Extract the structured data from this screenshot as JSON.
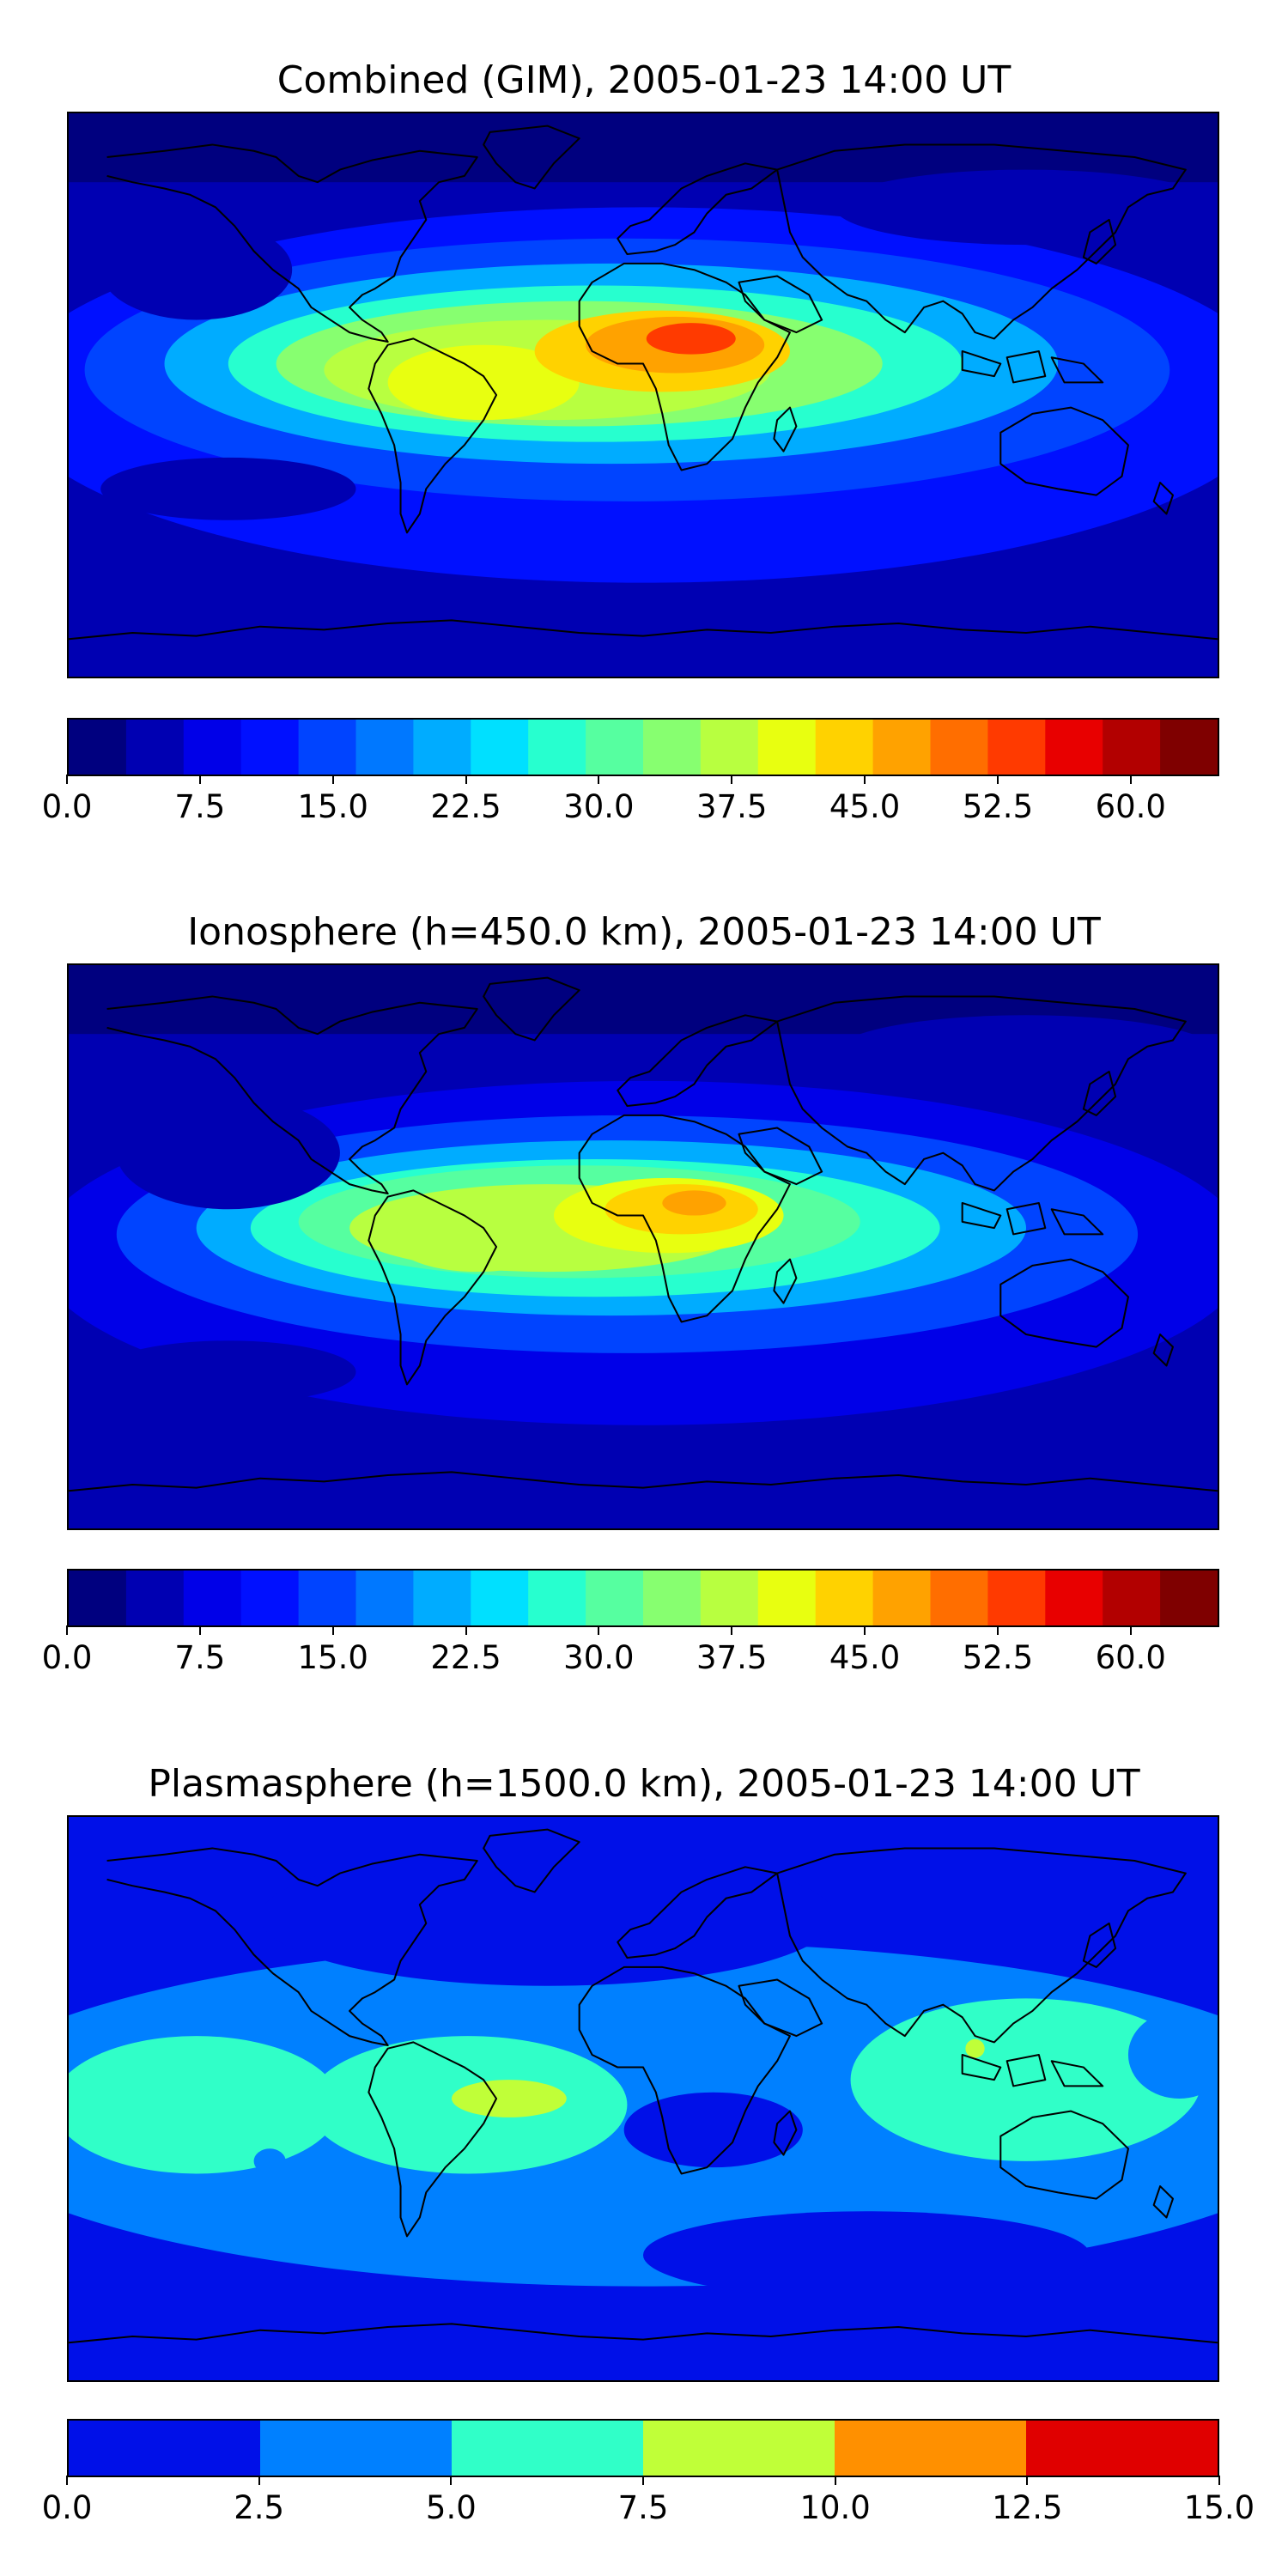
{
  "colors": {
    "jet": [
      "#00007f",
      "#0000b2",
      "#0000e8",
      "#0010ff",
      "#0044ff",
      "#0078ff",
      "#00acff",
      "#00e0ff",
      "#27ffcf",
      "#56ffa0",
      "#87ff70",
      "#b8ff40",
      "#e8ff10",
      "#ffd200",
      "#ffa200",
      "#ff6e00",
      "#ff3a00",
      "#e80000",
      "#b20000",
      "#7f0000"
    ],
    "plasma": [
      "#0010e8",
      "#0080ff",
      "#30ffc8",
      "#c0ff38",
      "#ff9000",
      "#e00000"
    ],
    "coast": "#000000"
  },
  "panels": [
    {
      "title": "Combined (GIM), 2005-01-23 14:00 UT",
      "type": "contour map",
      "colorbar": {
        "min": 0.0,
        "max": 65.0,
        "levels": 20,
        "ticks": [
          0.0,
          7.5,
          15.0,
          22.5,
          30.0,
          37.5,
          45.0,
          52.5,
          60.0
        ],
        "tick_labels": [
          "0.0",
          "7.5",
          "15.0",
          "22.5",
          "30.0",
          "37.5",
          "45.0",
          "52.5",
          "60.0"
        ]
      },
      "features": [
        {
          "name": "equatorial anomaly peak over Africa",
          "value": 50
        },
        {
          "name": "crest over South America",
          "value": 42
        },
        {
          "name": "background high latitudes",
          "value": 6
        }
      ]
    },
    {
      "title": "Ionosphere  (h=450.0 km), 2005-01-23 14:00 UT",
      "type": "contour map",
      "colorbar": {
        "min": 0.0,
        "max": 65.0,
        "levels": 20,
        "ticks": [
          0.0,
          7.5,
          15.0,
          22.5,
          30.0,
          37.5,
          45.0,
          52.5,
          60.0
        ],
        "tick_labels": [
          "0.0",
          "7.5",
          "15.0",
          "22.5",
          "30.0",
          "37.5",
          "45.0",
          "52.5",
          "60.0"
        ]
      },
      "features": [
        {
          "name": "equatorial anomaly peak over Africa",
          "value": 47
        },
        {
          "name": "crest over South America",
          "value": 38
        },
        {
          "name": "background high latitudes",
          "value": 5
        }
      ]
    },
    {
      "title": "Plasmasphere (h=1500.0 km), 2005-01-23 14:00 UT",
      "type": "contour map",
      "colorbar": {
        "min": 0.0,
        "max": 15.0,
        "levels": 6,
        "ticks": [
          0.0,
          2.5,
          5.0,
          7.5,
          10.0,
          12.5,
          15.0
        ],
        "tick_labels": [
          "0.0",
          "2.5",
          "5.0",
          "7.5",
          "10.0",
          "12.5",
          "15.0"
        ]
      },
      "features": [
        {
          "name": "maximum over South America",
          "value": 8
        },
        {
          "name": "low over central Africa",
          "value": 2
        },
        {
          "name": "polar background",
          "value": 2
        }
      ]
    }
  ]
}
